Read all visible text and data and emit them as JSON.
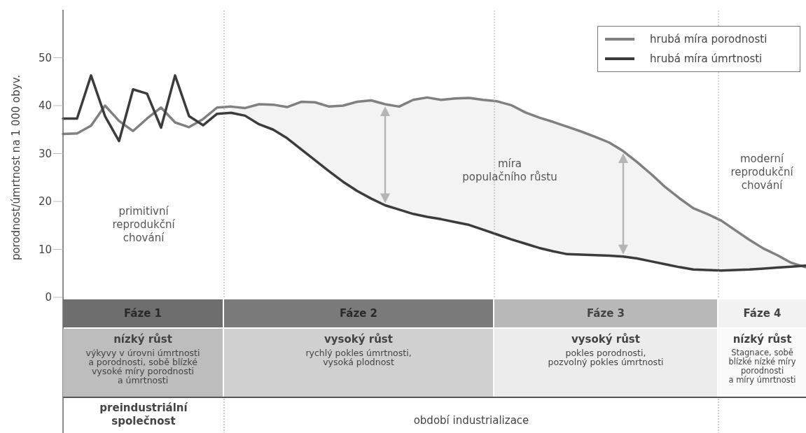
{
  "chart_data": {
    "type": "line",
    "ylabel": "porodnost/úmrtnost na 1 000 obyv.",
    "categories": [
      null,
      null,
      null,
      null,
      null,
      null,
      null,
      null,
      null,
      null,
      null,
      null,
      null,
      null,
      null,
      null,
      null,
      null,
      null,
      null,
      null,
      null,
      null,
      null,
      null,
      null,
      null,
      null,
      null,
      null,
      null,
      null,
      null,
      null,
      null,
      null,
      null,
      null,
      null,
      null,
      null,
      null,
      null,
      null,
      null,
      null,
      null,
      null,
      null,
      null,
      null,
      null,
      null,
      null
    ],
    "ylim": [
      0,
      60
    ],
    "yticks": [
      0,
      10,
      20,
      30,
      40,
      50
    ],
    "tick_labels": "y",
    "legend": "top right",
    "line_style": "solid",
    "series": [
      {
        "name": "hrubá míra porodnosti",
        "color": "#808080",
        "values": [
          34.1,
          34.2,
          35.8,
          40.0,
          36.8,
          34.7,
          37.3,
          39.6,
          36.5,
          35.5,
          37.2,
          39.6,
          39.8,
          39.5,
          40.3,
          40.2,
          39.7,
          40.8,
          40.7,
          39.8,
          40.0,
          40.8,
          41.1,
          40.3,
          39.8,
          41.2,
          41.7,
          41.2,
          41.5,
          41.6,
          41.2,
          40.9,
          40.1,
          38.6,
          37.5,
          36.6,
          35.6,
          34.6,
          33.5,
          32.3,
          30.5,
          28.2,
          25.7,
          23.0,
          20.7,
          18.6,
          17.4,
          16.0,
          14.0,
          12.0,
          10.2,
          8.8,
          7.2,
          6.3
        ]
      },
      {
        "name": "hrubá míra úmrtnosti",
        "color": "#3c3c3c",
        "values": [
          37.3,
          37.3,
          46.3,
          37.8,
          32.6,
          43.4,
          42.5,
          35.4,
          46.3,
          37.8,
          35.9,
          38.3,
          38.5,
          37.9,
          36.1,
          35.0,
          33.2,
          30.9,
          28.6,
          26.3,
          24.1,
          22.2,
          20.6,
          19.2,
          18.3,
          17.4,
          16.8,
          16.3,
          15.7,
          15.1,
          14.1,
          13.1,
          12.1,
          11.2,
          10.3,
          9.6,
          9.0,
          8.9,
          8.8,
          8.7,
          8.5,
          8.1,
          7.5,
          6.9,
          6.3,
          5.8,
          5.7,
          5.6,
          5.7,
          5.8,
          6.0,
          6.2,
          6.4,
          6.6
        ]
      }
    ],
    "annotations": [
      "primitivní\nreprodukční\nchování",
      "míra\npopulačního růstu",
      "moderní\nreprodukční\nchování",
      "Fáze 1",
      "Fáze 2",
      "Fáze 3",
      "Fáze 4",
      "nízký růst",
      "vysoký růst",
      "vysoký růst",
      "nízký růst",
      "výkyvy v úrovni úmrtnosti\na porodnosti, sobě blízké\nvysoké míry porodnosti\na úmrtnosti",
      "rychlý pokles úmrtnosti,\nvysoká plodnost",
      "pokles porodnosti,\npozvolný pokles úmrtnosti",
      "Stagnace, sobě\nblízké nízké míry\nporodnosti\na míry úmrtnosti",
      "preindustriální\nspolečnost",
      "období industrializace"
    ]
  }
}
